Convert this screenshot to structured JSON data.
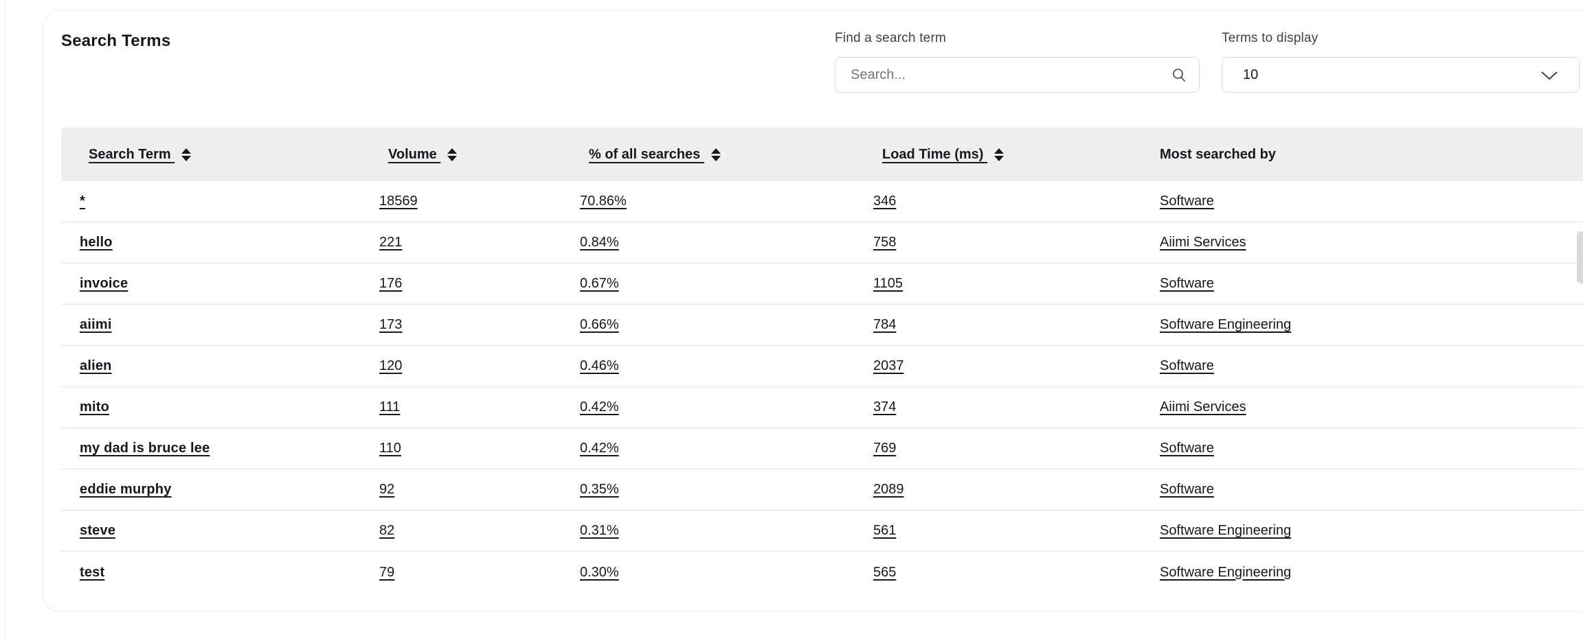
{
  "page": {
    "title": "Search Terms"
  },
  "controls": {
    "search": {
      "label": "Find a search term",
      "placeholder": "Search...",
      "icon": "magnifier-icon"
    },
    "terms_to_display": {
      "label": "Terms to display",
      "value": "10",
      "icon": "chevron-down-icon"
    }
  },
  "table": {
    "columns": [
      {
        "label": "Search Term",
        "sortable": true
      },
      {
        "label": "Volume",
        "sortable": true
      },
      {
        "label": "% of all searches",
        "sortable": true
      },
      {
        "label": "Load Time (ms)",
        "sortable": true
      },
      {
        "label": "Most searched by",
        "sortable": false
      }
    ],
    "rows": [
      {
        "term": "*",
        "volume": "18569",
        "pct": "70.86%",
        "load_ms": "346",
        "most_searched_by": "Software"
      },
      {
        "term": "hello",
        "volume": "221",
        "pct": "0.84%",
        "load_ms": "758",
        "most_searched_by": "Aiimi Services"
      },
      {
        "term": "invoice",
        "volume": "176",
        "pct": "0.67%",
        "load_ms": "1105",
        "most_searched_by": "Software"
      },
      {
        "term": "aiimi",
        "volume": "173",
        "pct": "0.66%",
        "load_ms": "784",
        "most_searched_by": "Software Engineering"
      },
      {
        "term": "alien",
        "volume": "120",
        "pct": "0.46%",
        "load_ms": "2037",
        "most_searched_by": "Software"
      },
      {
        "term": "mito",
        "volume": "111",
        "pct": "0.42%",
        "load_ms": "374",
        "most_searched_by": "Aiimi Services"
      },
      {
        "term": "my dad is bruce lee",
        "volume": "110",
        "pct": "0.42%",
        "load_ms": "769",
        "most_searched_by": "Software"
      },
      {
        "term": "eddie murphy",
        "volume": "92",
        "pct": "0.35%",
        "load_ms": "2089",
        "most_searched_by": "Software"
      },
      {
        "term": "steve",
        "volume": "82",
        "pct": "0.31%",
        "load_ms": "561",
        "most_searched_by": "Software Engineering"
      },
      {
        "term": "test",
        "volume": "79",
        "pct": "0.30%",
        "load_ms": "565",
        "most_searched_by": "Software Engineering"
      }
    ]
  },
  "colors": {
    "text": "#17171e",
    "label": "#3f3f48",
    "header_bg": "#efefef",
    "row_divider": "#e4e4e8",
    "input_border": "#d7dae0",
    "card_border": "#eeeef1"
  }
}
